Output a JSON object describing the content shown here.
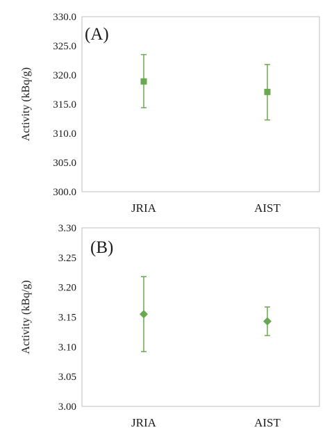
{
  "chart_data": [
    {
      "type": "scatter",
      "panel_label": "(A)",
      "categories": [
        "JRIA",
        "AIST"
      ],
      "ylabel": "Activity (kBq/g)",
      "ylim": [
        300.0,
        330.0
      ],
      "yticks": [
        "300.0",
        "305.0",
        "310.0",
        "315.0",
        "320.0",
        "325.0",
        "330.0"
      ],
      "marker": "square",
      "color": "#6aa84f",
      "series": [
        {
          "values": [
            318.9,
            317.1
          ],
          "error_low": [
            314.4,
            312.3
          ],
          "error_high": [
            323.5,
            321.8
          ]
        }
      ],
      "grid": false
    },
    {
      "type": "scatter",
      "panel_label": "(B)",
      "categories": [
        "JRIA",
        "AIST"
      ],
      "ylabel": "Activity (kBq/g)",
      "ylim": [
        3.0,
        3.3
      ],
      "yticks": [
        "3.00",
        "3.05",
        "3.10",
        "3.15",
        "3.20",
        "3.25",
        "3.30"
      ],
      "marker": "diamond",
      "color": "#6aa84f",
      "series": [
        {
          "values": [
            3.155,
            3.143
          ],
          "error_low": [
            3.092,
            3.119
          ],
          "error_high": [
            3.218,
            3.167
          ]
        }
      ],
      "grid": false
    }
  ]
}
